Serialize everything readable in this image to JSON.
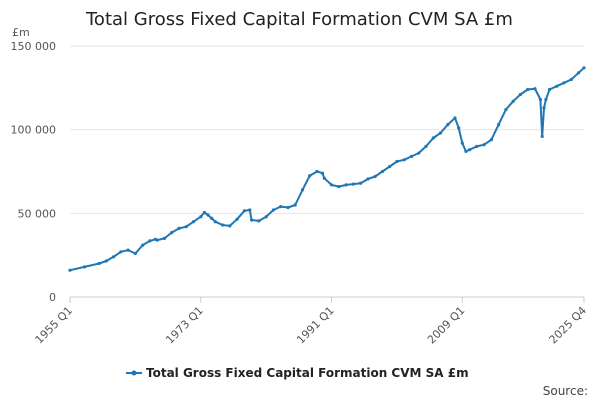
{
  "chart_data": {
    "type": "line",
    "title": "Total Gross Fixed Capital Formation CVM SA £m",
    "unit_label": "£m",
    "source_label": "Source:",
    "xlabel": "",
    "ylabel": "",
    "ylim": [
      0,
      150000
    ],
    "yticks": [
      {
        "value": 0,
        "label": "0"
      },
      {
        "value": 50000,
        "label": "50 000"
      },
      {
        "value": 100000,
        "label": "100 000"
      },
      {
        "value": 150000,
        "label": "150 000"
      }
    ],
    "xlim": [
      1955.0,
      2025.75
    ],
    "xticks": [
      {
        "value": 1955.0,
        "label": "1955 Q1"
      },
      {
        "value": 1973.0,
        "label": "1973 Q1"
      },
      {
        "value": 1991.0,
        "label": "1991 Q1"
      },
      {
        "value": 2009.0,
        "label": "2009 Q1"
      },
      {
        "value": 2025.75,
        "label": "2025 Q4"
      }
    ],
    "grid": true,
    "legend_position": "bottom",
    "series": [
      {
        "name": "Total Gross Fixed Capital Formation CVM SA £m",
        "color": "#1f77b4",
        "x": [
          1955.0,
          1957.0,
          1959.0,
          1960.0,
          1961.0,
          1962.0,
          1963.0,
          1964.0,
          1965.0,
          1966.0,
          1966.75,
          1967.0,
          1968.0,
          1969.0,
          1970.0,
          1971.0,
          1972.0,
          1973.0,
          1973.5,
          1974.0,
          1974.5,
          1975.0,
          1976.0,
          1977.0,
          1978.0,
          1979.0,
          1979.75,
          1980.0,
          1981.0,
          1982.0,
          1983.0,
          1984.0,
          1985.0,
          1986.0,
          1987.0,
          1988.0,
          1989.0,
          1989.75,
          1990.0,
          1991.0,
          1992.0,
          1993.0,
          1994.0,
          1995.0,
          1996.0,
          1997.0,
          1998.0,
          1999.0,
          2000.0,
          2001.0,
          2002.0,
          2003.0,
          2004.0,
          2005.0,
          2006.0,
          2007.0,
          2008.0,
          2008.5,
          2009.0,
          2009.5,
          2010.0,
          2011.0,
          2012.0,
          2013.0,
          2014.0,
          2015.0,
          2016.0,
          2017.0,
          2018.0,
          2019.0,
          2019.75,
          2020.0,
          2020.25,
          2020.5,
          2021.0,
          2022.0,
          2023.0,
          2024.0,
          2025.0,
          2025.75
        ],
        "values": [
          16000,
          18000,
          20000,
          21500,
          24000,
          27000,
          28000,
          26000,
          31000,
          33500,
          34500,
          34000,
          35000,
          38500,
          41000,
          42000,
          45000,
          48000,
          50500,
          49000,
          47000,
          45000,
          43000,
          42500,
          46500,
          51500,
          52000,
          46000,
          45500,
          48000,
          52000,
          54000,
          53500,
          55000,
          64000,
          72500,
          75000,
          74000,
          71000,
          67000,
          66000,
          67000,
          67500,
          68000,
          70500,
          72000,
          75000,
          78000,
          81000,
          82000,
          84000,
          86000,
          90000,
          95000,
          98000,
          103000,
          107000,
          101000,
          92000,
          87000,
          88000,
          90000,
          91000,
          94000,
          103000,
          112000,
          117000,
          121000,
          124000,
          124500,
          118000,
          96000,
          113000,
          118000,
          124000,
          126000,
          128000,
          130000,
          134000,
          137000
        ]
      }
    ]
  }
}
